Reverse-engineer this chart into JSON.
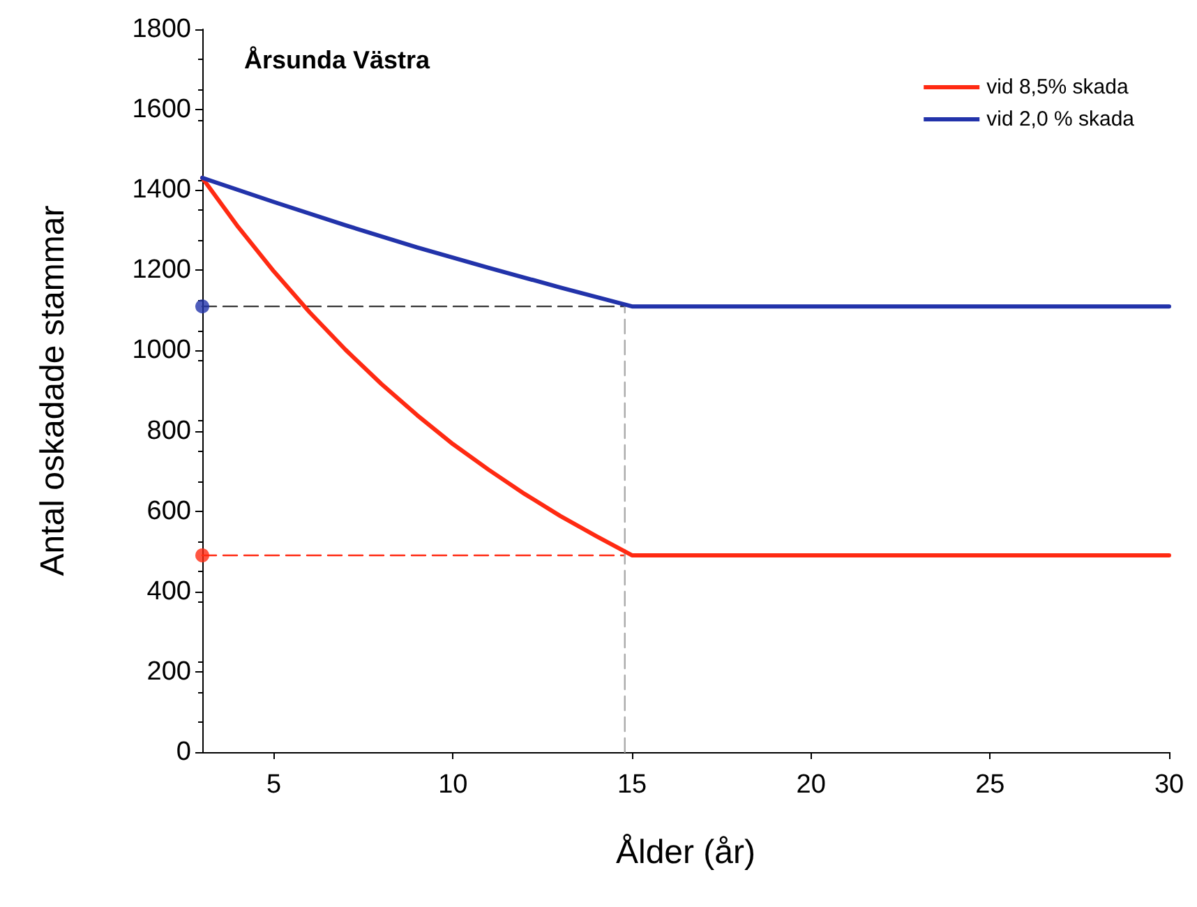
{
  "chart_data": {
    "type": "line",
    "title": "Årsunda Västra",
    "xlabel": "Ålder (år)",
    "ylabel": "Antal oskadade stammar",
    "xlim": [
      3,
      30
    ],
    "xticks": [
      5,
      10,
      15,
      20,
      25,
      30
    ],
    "ylim": [
      0,
      1800
    ],
    "yticks": [
      0,
      200,
      400,
      600,
      800,
      1000,
      1200,
      1400,
      1600,
      1800
    ],
    "grid": false,
    "legend": "top right",
    "marker": "none",
    "line_style": "solid",
    "series": [
      {
        "name": "vid 8,5% skada",
        "color": "#ff2a12",
        "x": [
          3,
          4,
          5,
          6,
          7,
          8,
          9,
          10,
          11,
          12,
          13,
          14,
          15,
          20,
          25,
          30
        ],
        "values": [
          1430,
          1308,
          1197,
          1095,
          1002,
          917,
          839,
          767,
          703,
          643,
          588,
          538,
          490,
          490,
          490,
          490
        ]
      },
      {
        "name": "vid 2,0 % skada",
        "color": "#2233aa",
        "x": [
          3,
          5,
          7,
          9,
          11,
          13,
          15,
          20,
          25,
          30
        ],
        "values": [
          1430,
          1370,
          1312,
          1257,
          1206,
          1157,
          1110,
          1110,
          1110,
          1110
        ]
      },
      {
        "type": "line",
        "line_style": "dashed",
        "color": "#ff2a12",
        "x": [
          3,
          14.8
        ],
        "values": [
          490,
          490
        ]
      },
      {
        "type": "line",
        "line_style": "dashed",
        "color": "#333333",
        "x": [
          3,
          14.8
        ],
        "values": [
          1110,
          1110
        ]
      },
      {
        "type": "line",
        "line_style": "dashed",
        "color": "#aaaaaa",
        "x": [
          14.8,
          14.8
        ],
        "values": [
          0,
          1110
        ]
      },
      {
        "type": "scatter",
        "marker": "circle",
        "color": "#ff2a12",
        "x": [
          3
        ],
        "values": [
          490
        ]
      },
      {
        "type": "scatter",
        "marker": "circle",
        "color": "#2233aa",
        "x": [
          3
        ],
        "values": [
          1110
        ]
      }
    ]
  }
}
